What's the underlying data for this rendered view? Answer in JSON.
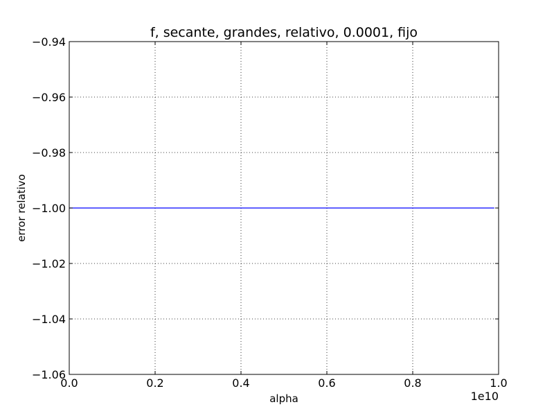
{
  "chart_data": {
    "type": "line",
    "title": "f, secante, grandes, relativo, 0.0001, fijo",
    "xlabel": "alpha",
    "ylabel": "error relativo",
    "x_offset_label": "1e10",
    "xlim": [
      0.0,
      1.0
    ],
    "ylim": [
      -1.06,
      -0.94
    ],
    "x_ticks": [
      "0.0",
      "0.2",
      "0.4",
      "0.6",
      "0.8",
      "1.0"
    ],
    "y_ticks": [
      "−0.94",
      "−0.96",
      "−0.98",
      "−1.00",
      "−1.02",
      "−1.04",
      "−1.06"
    ],
    "grid": true,
    "legend": "none",
    "series": [
      {
        "color": "#0000ff",
        "x": [
          0.0,
          0.99
        ],
        "y": [
          -1.0,
          -1.0
        ]
      }
    ]
  }
}
